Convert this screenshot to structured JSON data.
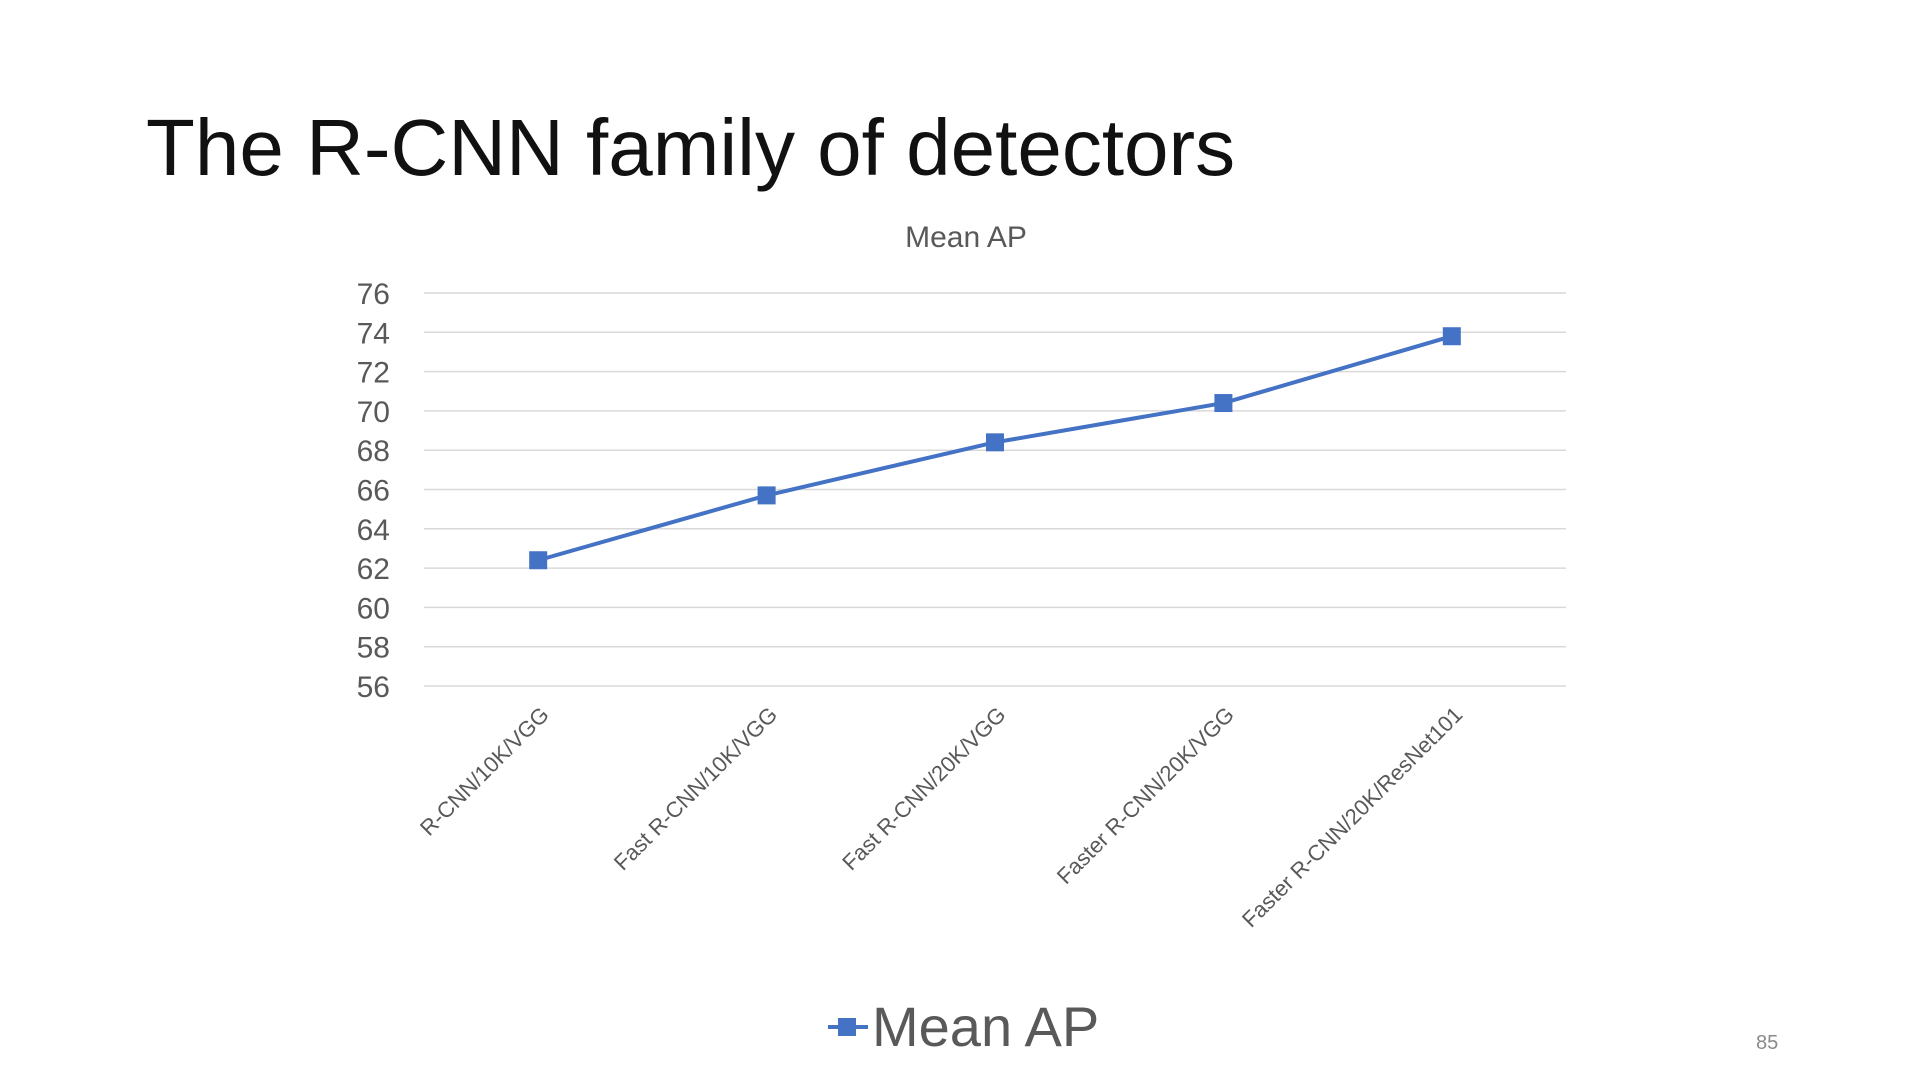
{
  "slide": {
    "title": "The R-CNN family of detectors",
    "page_number": "85"
  },
  "chart_data": {
    "type": "line",
    "title": "Mean AP",
    "xlabel": "",
    "ylabel": "",
    "categories": [
      "R-CNN/10K/VGG",
      "Fast R-CNN/10K/VGG",
      "Fast R-CNN/20K/VGG",
      "Faster R-CNN/20K/VGG",
      "Faster R-CNN/20K/ResNet101"
    ],
    "series": [
      {
        "name": "Mean AP",
        "values": [
          62.4,
          65.7,
          68.4,
          70.4,
          73.8
        ],
        "color": "#4472c4",
        "marker": "square"
      }
    ],
    "ylim": [
      56,
      76
    ],
    "yticks": [
      56,
      58,
      60,
      62,
      64,
      66,
      68,
      70,
      72,
      74,
      76
    ],
    "grid": true,
    "legend_position": "bottom",
    "gridline_color": "#d9d9d9",
    "text_color": "#595959"
  }
}
